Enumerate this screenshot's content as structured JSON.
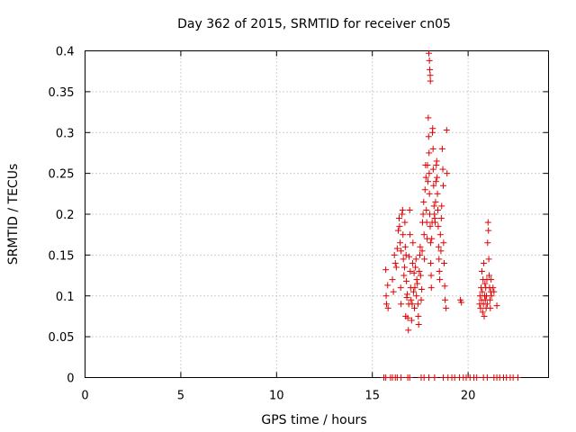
{
  "chart_data": {
    "type": "scatter",
    "title": "Day 362 of 2015, SRMTID for receiver cn05",
    "xlabel": "GPS time / hours",
    "ylabel": "SRMTID / TECUs",
    "xlim": [
      0,
      24.2
    ],
    "ylim": [
      0,
      0.4
    ],
    "xticks": [
      0,
      5,
      10,
      15,
      20
    ],
    "xtick_labels": [
      "0",
      "5",
      "10",
      "15",
      "20"
    ],
    "yticks": [
      0,
      0.05,
      0.1,
      0.15,
      0.2,
      0.25,
      0.3,
      0.35,
      0.4
    ],
    "ytick_labels": [
      "0",
      "0.05",
      "0.1",
      "0.15",
      "0.2",
      "0.25",
      "0.3",
      "0.35",
      "0.4"
    ],
    "grid": true,
    "marker": "+",
    "color": "#e00000",
    "series": [
      {
        "name": "SRMTID",
        "points": [
          [
            15.6,
            0.0
          ],
          [
            15.7,
            0.0
          ],
          [
            15.95,
            0.0
          ],
          [
            16.05,
            0.0
          ],
          [
            16.2,
            0.0
          ],
          [
            16.3,
            0.0
          ],
          [
            16.5,
            0.0
          ],
          [
            16.85,
            0.0
          ],
          [
            16.95,
            0.0
          ],
          [
            17.55,
            0.0
          ],
          [
            17.7,
            0.0
          ],
          [
            17.95,
            0.0
          ],
          [
            18.25,
            0.0
          ],
          [
            18.7,
            0.0
          ],
          [
            18.95,
            0.0
          ],
          [
            19.15,
            0.0
          ],
          [
            19.3,
            0.0
          ],
          [
            19.55,
            0.0
          ],
          [
            19.75,
            0.0
          ],
          [
            19.9,
            0.0
          ],
          [
            20.1,
            0.0
          ],
          [
            20.3,
            0.0
          ],
          [
            20.45,
            0.0
          ],
          [
            20.8,
            0.0
          ],
          [
            21.0,
            0.0
          ],
          [
            21.35,
            0.0
          ],
          [
            21.5,
            0.0
          ],
          [
            21.65,
            0.0
          ],
          [
            21.85,
            0.0
          ],
          [
            22.0,
            0.0
          ],
          [
            22.2,
            0.0
          ],
          [
            22.35,
            0.0
          ],
          [
            22.6,
            0.0
          ],
          [
            15.7,
            0.132
          ],
          [
            15.72,
            0.1
          ],
          [
            15.74,
            0.09
          ],
          [
            15.8,
            0.113
          ],
          [
            15.82,
            0.085
          ],
          [
            16.05,
            0.12
          ],
          [
            16.1,
            0.105
          ],
          [
            16.15,
            0.15
          ],
          [
            16.2,
            0.14
          ],
          [
            16.25,
            0.135
          ],
          [
            16.3,
            0.158
          ],
          [
            16.35,
            0.18
          ],
          [
            16.4,
            0.195
          ],
          [
            16.42,
            0.185
          ],
          [
            16.45,
            0.165
          ],
          [
            16.48,
            0.11
          ],
          [
            16.5,
            0.09
          ],
          [
            16.5,
            0.155
          ],
          [
            16.55,
            0.2
          ],
          [
            16.58,
            0.205
          ],
          [
            16.6,
            0.175
          ],
          [
            16.62,
            0.145
          ],
          [
            16.65,
            0.125
          ],
          [
            16.68,
            0.135
          ],
          [
            16.7,
            0.19
          ],
          [
            16.72,
            0.16
          ],
          [
            16.74,
            0.075
          ],
          [
            16.76,
            0.15
          ],
          [
            16.78,
            0.118
          ],
          [
            16.8,
            0.098
          ],
          [
            16.82,
            0.102
          ],
          [
            16.85,
            0.073
          ],
          [
            16.88,
            0.058
          ],
          [
            16.9,
            0.09
          ],
          [
            16.92,
            0.148
          ],
          [
            16.95,
            0.205
          ],
          [
            16.97,
            0.175
          ],
          [
            16.98,
            0.13
          ],
          [
            17.0,
            0.11
          ],
          [
            17.02,
            0.095
          ],
          [
            17.05,
            0.07
          ],
          [
            17.08,
            0.09
          ],
          [
            17.1,
            0.14
          ],
          [
            17.12,
            0.165
          ],
          [
            17.15,
            0.105
          ],
          [
            17.18,
            0.128
          ],
          [
            17.2,
            0.085
          ],
          [
            17.22,
            0.11
          ],
          [
            17.25,
            0.135
          ],
          [
            17.28,
            0.145
          ],
          [
            17.3,
            0.1
          ],
          [
            17.32,
            0.12
          ],
          [
            17.35,
            0.115
          ],
          [
            17.38,
            0.09
          ],
          [
            17.4,
            0.075
          ],
          [
            17.42,
            0.065
          ],
          [
            17.45,
            0.13
          ],
          [
            17.48,
            0.15
          ],
          [
            17.5,
            0.16
          ],
          [
            17.52,
            0.125
          ],
          [
            17.55,
            0.095
          ],
          [
            17.58,
            0.108
          ],
          [
            17.6,
            0.155
          ],
          [
            17.62,
            0.19
          ],
          [
            17.65,
            0.2
          ],
          [
            17.68,
            0.215
          ],
          [
            17.7,
            0.175
          ],
          [
            17.72,
            0.145
          ],
          [
            17.75,
            0.23
          ],
          [
            17.78,
            0.26
          ],
          [
            17.8,
            0.245
          ],
          [
            17.82,
            0.205
          ],
          [
            17.84,
            0.19
          ],
          [
            17.86,
            0.17
          ],
          [
            17.88,
            0.26
          ],
          [
            17.9,
            0.24
          ],
          [
            17.92,
            0.318
          ],
          [
            17.94,
            0.295
          ],
          [
            17.96,
            0.275
          ],
          [
            17.97,
            0.25
          ],
          [
            17.98,
            0.225
          ],
          [
            18.0,
            0.2
          ],
          [
            18.02,
            0.185
          ],
          [
            18.04,
            0.165
          ],
          [
            18.05,
            0.14
          ],
          [
            18.07,
            0.125
          ],
          [
            18.08,
            0.11
          ],
          [
            18.1,
            0.17
          ],
          [
            18.12,
            0.19
          ],
          [
            18.14,
            0.3
          ],
          [
            18.15,
            0.305
          ],
          [
            18.17,
            0.28
          ],
          [
            18.18,
            0.255
          ],
          [
            18.2,
            0.235
          ],
          [
            18.22,
            0.21
          ],
          [
            18.24,
            0.2
          ],
          [
            18.26,
            0.195
          ],
          [
            18.28,
            0.19
          ],
          [
            18.3,
            0.215
          ],
          [
            18.32,
            0.24
          ],
          [
            18.34,
            0.26
          ],
          [
            18.36,
            0.265
          ],
          [
            18.38,
            0.245
          ],
          [
            18.4,
            0.225
          ],
          [
            18.42,
            0.205
          ],
          [
            18.44,
            0.185
          ],
          [
            18.46,
            0.16
          ],
          [
            18.48,
            0.145
          ],
          [
            18.5,
            0.13
          ],
          [
            18.52,
            0.12
          ],
          [
            18.55,
            0.175
          ],
          [
            18.58,
            0.155
          ],
          [
            18.6,
            0.195
          ],
          [
            18.62,
            0.21
          ],
          [
            18.65,
            0.28
          ],
          [
            18.68,
            0.255
          ],
          [
            18.7,
            0.235
          ],
          [
            18.72,
            0.165
          ],
          [
            18.75,
            0.14
          ],
          [
            18.78,
            0.112
          ],
          [
            18.8,
            0.095
          ],
          [
            18.85,
            0.085
          ],
          [
            18.88,
            0.303
          ],
          [
            18.9,
            0.25
          ],
          [
            17.95,
            0.397
          ],
          [
            17.98,
            0.388
          ],
          [
            18.0,
            0.377
          ],
          [
            18.02,
            0.37
          ],
          [
            18.03,
            0.363
          ],
          [
            19.6,
            0.095
          ],
          [
            19.65,
            0.092
          ],
          [
            20.6,
            0.09
          ],
          [
            20.62,
            0.1
          ],
          [
            20.65,
            0.085
          ],
          [
            20.68,
            0.11
          ],
          [
            20.7,
            0.095
          ],
          [
            20.72,
            0.13
          ],
          [
            20.74,
            0.105
          ],
          [
            20.76,
            0.08
          ],
          [
            20.78,
            0.12
          ],
          [
            20.8,
            0.09
          ],
          [
            20.82,
            0.14
          ],
          [
            20.84,
            0.075
          ],
          [
            20.86,
            0.1
          ],
          [
            20.88,
            0.115
          ],
          [
            20.9,
            0.095
          ],
          [
            20.92,
            0.11
          ],
          [
            20.94,
            0.085
          ],
          [
            20.96,
            0.1
          ],
          [
            20.98,
            0.12
          ],
          [
            21.0,
            0.09
          ],
          [
            21.02,
            0.165
          ],
          [
            21.04,
            0.19
          ],
          [
            21.06,
            0.18
          ],
          [
            21.08,
            0.145
          ],
          [
            21.1,
            0.125
          ],
          [
            21.12,
            0.11
          ],
          [
            21.14,
            0.095
          ],
          [
            21.16,
            0.085
          ],
          [
            21.18,
            0.105
          ],
          [
            21.2,
            0.12
          ],
          [
            21.22,
            0.1
          ],
          [
            21.3,
            0.11
          ],
          [
            21.35,
            0.105
          ],
          [
            21.5,
            0.088
          ]
        ]
      }
    ]
  }
}
